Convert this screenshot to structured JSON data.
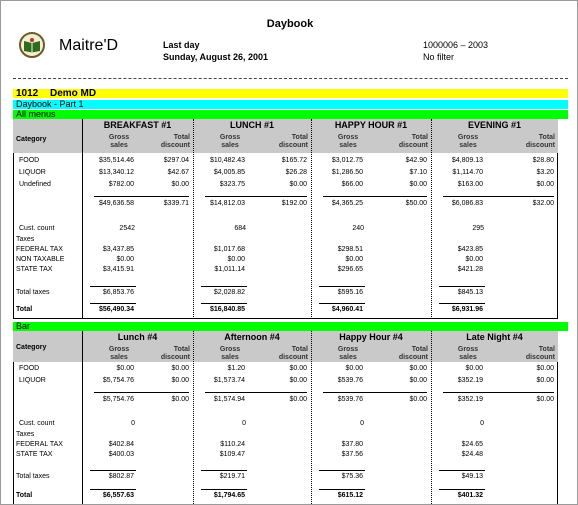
{
  "report": {
    "title": "Daybook",
    "brand": "Maitre'D",
    "period_label": "Last day",
    "date": "Sunday, August 26, 2001",
    "range": "1000006 – 2003",
    "filter": "No filter"
  },
  "bands": {
    "store_number": "1012",
    "store_name": "Demo MD",
    "part": "Daybook - Part 1",
    "menu1": "All menus",
    "menu2": "Bar"
  },
  "labels": {
    "category": "Category",
    "gross_l1": "Gross",
    "gross_l2": "sales",
    "disc_l1": "Total",
    "disc_l2": "discount",
    "cust_count": "Cust. count",
    "taxes": "Taxes",
    "total_taxes": "Total taxes",
    "total": "Total"
  },
  "section1": {
    "periods": [
      "BREAKFAST #1",
      "LUNCH #1",
      "HAPPY HOUR #1",
      "EVENING #1"
    ],
    "categories": [
      "FOOD",
      "LIQUOR",
      "Undefined"
    ],
    "rows": [
      [
        [
          "$35,514.46",
          "$297.04"
        ],
        [
          "$10,482.43",
          "$165.72"
        ],
        [
          "$3,012.75",
          "$42.90"
        ],
        [
          "$4,809.13",
          "$28.80"
        ]
      ],
      [
        [
          "$13,340.12",
          "$42.67"
        ],
        [
          "$4,005.85",
          "$26.28"
        ],
        [
          "$1,286.50",
          "$7.10"
        ],
        [
          "$1,114.70",
          "$3.20"
        ]
      ],
      [
        [
          "$782.00",
          "$0.00"
        ],
        [
          "$323.75",
          "$0.00"
        ],
        [
          "$66.00",
          "$0.00"
        ],
        [
          "$163.00",
          "$0.00"
        ]
      ]
    ],
    "subtotal": [
      [
        "$49,636.58",
        "$339.71"
      ],
      [
        "$14,812.03",
        "$192.00"
      ],
      [
        "$4,365.25",
        "$50.00"
      ],
      [
        "$6,086.83",
        "$32.00"
      ]
    ],
    "cust": [
      "2542",
      "684",
      "240",
      "295"
    ],
    "tax_names": [
      "FEDERAL TAX",
      "NON TAXABLE",
      "STATE TAX"
    ],
    "taxes": [
      [
        "$3,437.85",
        "$1,017.68",
        "$298.51",
        "$423.85"
      ],
      [
        "$0.00",
        "$0.00",
        "$0.00",
        "$0.00"
      ],
      [
        "$3,415.91",
        "$1,011.14",
        "$296.65",
        "$421.28"
      ]
    ],
    "total_taxes": [
      "$6,853.76",
      "$2,028.82",
      "$595.16",
      "$845.13"
    ],
    "totals": [
      "$56,490.34",
      "$16,840.85",
      "$4,960.41",
      "$6,931.96"
    ]
  },
  "section2": {
    "periods": [
      "Lunch #4",
      "Afternoon #4",
      "Happy Hour #4",
      "Late Night #4"
    ],
    "categories": [
      "FOOD",
      "LIQUOR"
    ],
    "rows": [
      [
        [
          "$0.00",
          "$0.00"
        ],
        [
          "$1.20",
          "$0.00"
        ],
        [
          "$0.00",
          "$0.00"
        ],
        [
          "$0.00",
          "$0.00"
        ]
      ],
      [
        [
          "$5,754.76",
          "$0.00"
        ],
        [
          "$1,573.74",
          "$0.00"
        ],
        [
          "$539.76",
          "$0.00"
        ],
        [
          "$352.19",
          "$0.00"
        ]
      ]
    ],
    "subtotal": [
      [
        "$5,754.76",
        "$0.00"
      ],
      [
        "$1,574.94",
        "$0.00"
      ],
      [
        "$539.76",
        "$0.00"
      ],
      [
        "$352.19",
        "$0.00"
      ]
    ],
    "cust": [
      "0",
      "0",
      "0",
      "0"
    ],
    "tax_names": [
      "FEDERAL TAX",
      "STATE TAX"
    ],
    "taxes": [
      [
        "$402.84",
        "$110.24",
        "$37.80",
        "$24.65"
      ],
      [
        "$400.03",
        "$109.47",
        "$37.56",
        "$24.48"
      ]
    ],
    "total_taxes": [
      "$802.87",
      "$219.71",
      "$75.36",
      "$49.13"
    ],
    "totals": [
      "$6,557.63",
      "$1,794.65",
      "$615.12",
      "$401.32"
    ]
  }
}
